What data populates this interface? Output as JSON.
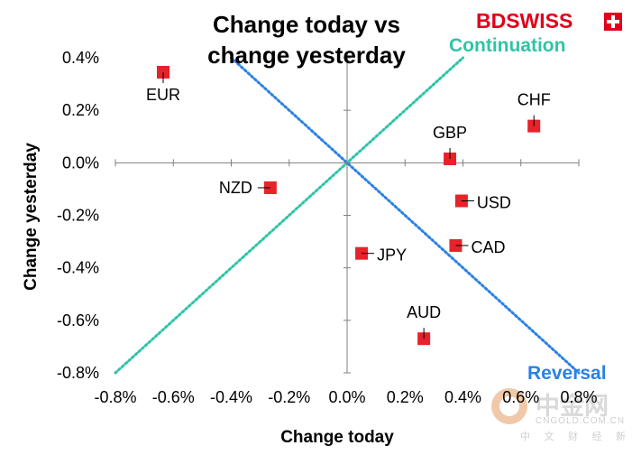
{
  "brand": {
    "name": "BDSWISS",
    "color": "#e0001b"
  },
  "watermark": {
    "text": "中金网",
    "subtext": "CNGOLD.COM.CN",
    "caption": "中 文 财 经 新 媒 体"
  },
  "chart_data": {
    "type": "scatter",
    "title_lines": [
      "Change today vs",
      "change yesterday"
    ],
    "xlabel": "Change today",
    "ylabel": "Change yesterday",
    "xlim": [
      -0.8,
      0.8
    ],
    "ylim": [
      -0.8,
      0.4
    ],
    "x_ticks": [
      -0.8,
      -0.6,
      -0.4,
      -0.2,
      0.0,
      0.2,
      0.4,
      0.6,
      0.8
    ],
    "x_tick_labels": [
      "-0.8%",
      "-0.6%",
      "-0.4%",
      "-0.2%",
      "0.0%",
      "0.2%",
      "0.4%",
      "0.6%",
      "0.8%"
    ],
    "y_ticks": [
      0.4,
      0.2,
      0.0,
      -0.2,
      -0.4,
      -0.6,
      -0.8
    ],
    "y_tick_labels": [
      "0.4%",
      "0.2%",
      "0.0%",
      "-0.2%",
      "-0.4%",
      "-0.6%",
      "-0.8%"
    ],
    "marker_color": "#e8222a",
    "points": [
      {
        "label": "EUR",
        "x": -0.635,
        "y": 0.345,
        "label_pos": "below"
      },
      {
        "label": "CHF",
        "x": 0.645,
        "y": 0.14,
        "label_pos": "above"
      },
      {
        "label": "GBP",
        "x": 0.355,
        "y": 0.015,
        "label_pos": "above"
      },
      {
        "label": "NZD",
        "x": -0.265,
        "y": -0.095,
        "label_pos": "left"
      },
      {
        "label": "USD",
        "x": 0.395,
        "y": -0.145,
        "label_pos": "right"
      },
      {
        "label": "CAD",
        "x": 0.375,
        "y": -0.315,
        "label_pos": "right"
      },
      {
        "label": "JPY",
        "x": 0.05,
        "y": -0.345,
        "label_pos": "right"
      },
      {
        "label": "AUD",
        "x": 0.265,
        "y": -0.67,
        "label_pos": "above"
      }
    ],
    "reference_lines": [
      {
        "name": "Continuation",
        "from": [
          -0.8,
          -0.8
        ],
        "to": [
          0.4,
          0.4
        ],
        "color": "#2ec4a6"
      },
      {
        "name": "Reversal",
        "from": [
          -0.4,
          0.4
        ],
        "to": [
          0.8,
          -0.8
        ],
        "color": "#2a82e4"
      }
    ],
    "annotations": [
      {
        "text": "Continuation",
        "color": "#2ec4a6"
      },
      {
        "text": "Reversal",
        "color": "#2a82e4"
      }
    ]
  }
}
